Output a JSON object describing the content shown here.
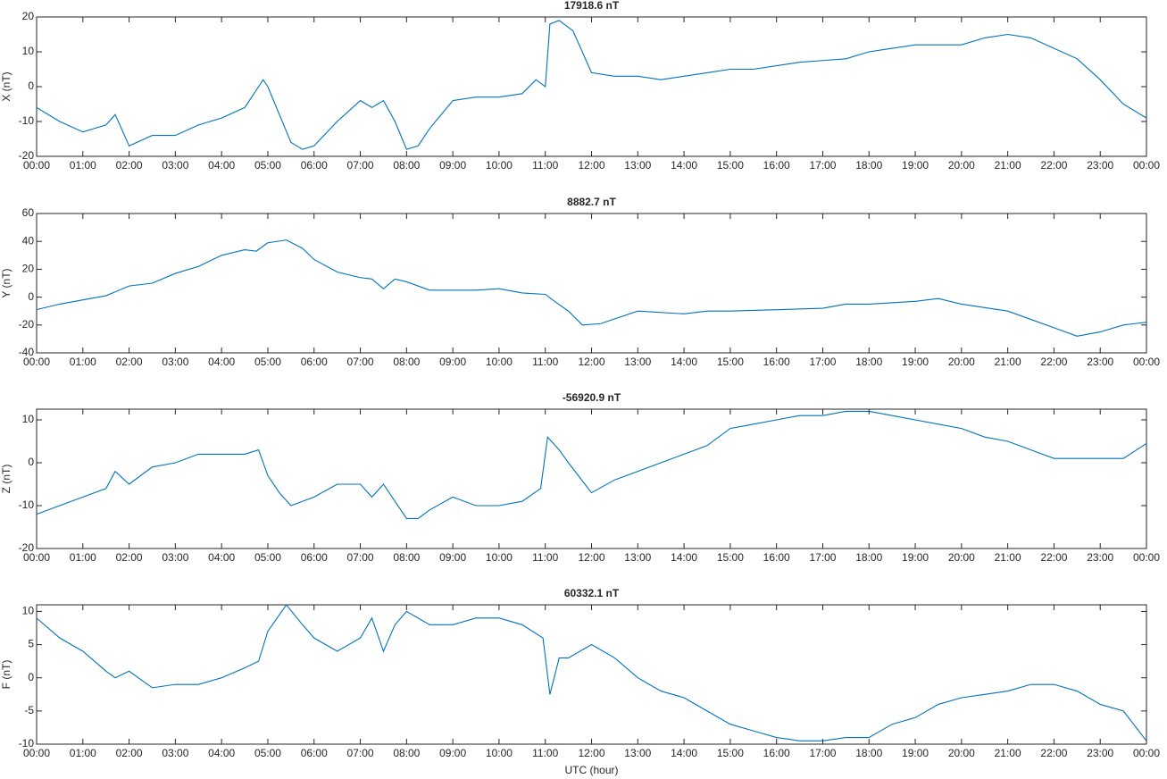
{
  "chart_data": [
    {
      "type": "line",
      "title": "17918.6 nT",
      "ylabel": "X (nT)",
      "color": "#0072bd",
      "x": [
        0,
        0.5,
        1,
        1.5,
        1.7,
        2,
        2.5,
        3,
        3.5,
        4,
        4.5,
        4.9,
        5,
        5.25,
        5.5,
        5.75,
        6,
        6.5,
        7,
        7.25,
        7.5,
        7.75,
        8,
        8.25,
        8.5,
        9,
        9.5,
        10,
        10.5,
        10.8,
        11,
        11.1,
        11.3,
        11.6,
        12,
        12.5,
        13,
        13.5,
        14,
        14.5,
        15,
        15.5,
        16,
        16.5,
        17,
        17.5,
        18,
        18.5,
        19,
        19.5,
        20,
        20.5,
        21,
        21.5,
        22,
        22.5,
        23,
        23.5,
        24
      ],
      "values": [
        -6,
        -10,
        -13,
        -11,
        -8,
        -17,
        -14,
        -14,
        -11,
        -9,
        -6,
        2,
        0,
        -8,
        -16,
        -18,
        -17,
        -10,
        -4,
        -6,
        -4,
        -10,
        -18,
        -17,
        -12,
        -4,
        -3,
        -3,
        -2,
        2,
        0,
        18,
        19,
        16,
        4,
        3,
        3,
        2,
        3,
        4,
        5,
        5,
        6,
        7,
        7.5,
        8,
        10,
        11,
        12,
        12,
        12,
        14,
        15,
        14,
        11,
        8,
        2,
        -5,
        -9
      ],
      "xlim": [
        0,
        24
      ],
      "ylim": [
        -20,
        20
      ],
      "yticks": [
        -20,
        -10,
        0,
        10,
        20
      ],
      "xticks": [
        {
          "value": 0,
          "label": "00:00"
        },
        {
          "value": 1,
          "label": "01:00"
        },
        {
          "value": 2,
          "label": "02:00"
        },
        {
          "value": 3,
          "label": "03:00"
        },
        {
          "value": 4,
          "label": "04:00"
        },
        {
          "value": 5,
          "label": "05:00"
        },
        {
          "value": 6,
          "label": "06:00"
        },
        {
          "value": 7,
          "label": "07:00"
        },
        {
          "value": 8,
          "label": "08:00"
        },
        {
          "value": 9,
          "label": "09:00"
        },
        {
          "value": 10,
          "label": "10:00"
        },
        {
          "value": 11,
          "label": "11:00"
        },
        {
          "value": 12,
          "label": "12:00"
        },
        {
          "value": 13,
          "label": "13:00"
        },
        {
          "value": 14,
          "label": "14:00"
        },
        {
          "value": 15,
          "label": "15:00"
        },
        {
          "value": 16,
          "label": "16:00"
        },
        {
          "value": 17,
          "label": "17:00"
        },
        {
          "value": 18,
          "label": "18:00"
        },
        {
          "value": 19,
          "label": "19:00"
        },
        {
          "value": 20,
          "label": "20:00"
        },
        {
          "value": 21,
          "label": "21:00"
        },
        {
          "value": 22,
          "label": "22:00"
        },
        {
          "value": 23,
          "label": "23:00"
        },
        {
          "value": 24,
          "label": "00:00"
        }
      ]
    },
    {
      "type": "line",
      "title": "8882.7 nT",
      "ylabel": "Y (nT)",
      "color": "#0072bd",
      "x": [
        0,
        0.5,
        1,
        1.5,
        2,
        2.5,
        3,
        3.5,
        4,
        4.5,
        4.75,
        5,
        5.4,
        5.75,
        6,
        6.5,
        7,
        7.25,
        7.5,
        7.75,
        8,
        8.5,
        9,
        9.5,
        10,
        10.5,
        11,
        11.2,
        11.5,
        11.8,
        12.2,
        13,
        14,
        14.5,
        15,
        16,
        17,
        17.5,
        18,
        19,
        19.5,
        20,
        21,
        21.5,
        22,
        22.5,
        23,
        23.5,
        24
      ],
      "values": [
        -9,
        -5,
        -2,
        1,
        8,
        10,
        17,
        22,
        30,
        34,
        33,
        39,
        41,
        35,
        27,
        18,
        14,
        13,
        6,
        13,
        11,
        5,
        5,
        5,
        6,
        3,
        2,
        -3,
        -10,
        -20,
        -19,
        -10,
        -12,
        -10,
        -10,
        -9,
        -8,
        -5,
        -5,
        -3,
        -1,
        -5,
        -10,
        -16,
        -22,
        -28,
        -25,
        -20,
        -18
      ],
      "xlim": [
        0,
        24
      ],
      "ylim": [
        -40,
        60
      ],
      "yticks": [
        -40,
        -20,
        0,
        20,
        40,
        60
      ],
      "xticks": [
        {
          "value": 0,
          "label": "00:00"
        },
        {
          "value": 1,
          "label": "01:00"
        },
        {
          "value": 2,
          "label": "02:00"
        },
        {
          "value": 3,
          "label": "03:00"
        },
        {
          "value": 4,
          "label": "04:00"
        },
        {
          "value": 5,
          "label": "05:00"
        },
        {
          "value": 6,
          "label": "06:00"
        },
        {
          "value": 7,
          "label": "07:00"
        },
        {
          "value": 8,
          "label": "08:00"
        },
        {
          "value": 9,
          "label": "09:00"
        },
        {
          "value": 10,
          "label": "10:00"
        },
        {
          "value": 11,
          "label": "11:00"
        },
        {
          "value": 12,
          "label": "12:00"
        },
        {
          "value": 13,
          "label": "13:00"
        },
        {
          "value": 14,
          "label": "14:00"
        },
        {
          "value": 15,
          "label": "15:00"
        },
        {
          "value": 16,
          "label": "16:00"
        },
        {
          "value": 17,
          "label": "17:00"
        },
        {
          "value": 18,
          "label": "18:00"
        },
        {
          "value": 19,
          "label": "19:00"
        },
        {
          "value": 20,
          "label": "20:00"
        },
        {
          "value": 21,
          "label": "21:00"
        },
        {
          "value": 22,
          "label": "22:00"
        },
        {
          "value": 23,
          "label": "23:00"
        },
        {
          "value": 24,
          "label": "00:00"
        }
      ]
    },
    {
      "type": "line",
      "title": "-56920.9 nT",
      "ylabel": "Z (nT)",
      "color": "#0072bd",
      "x": [
        0,
        0.5,
        1,
        1.5,
        1.7,
        2,
        2.5,
        3,
        3.5,
        4,
        4.5,
        4.8,
        5,
        5.25,
        5.5,
        6,
        6.5,
        7,
        7.25,
        7.5,
        7.75,
        8,
        8.25,
        8.5,
        9,
        9.5,
        10,
        10.5,
        10.9,
        11.05,
        11.3,
        11.5,
        12,
        12.5,
        13,
        13.5,
        14,
        14.5,
        15,
        15.5,
        16,
        16.5,
        17,
        17.5,
        18,
        18.5,
        19,
        19.5,
        20,
        20.5,
        21,
        21.5,
        22,
        22.5,
        23,
        23.5,
        24
      ],
      "values": [
        -12,
        -10,
        -8,
        -6,
        -2,
        -5,
        -1,
        0,
        2,
        2,
        2,
        3,
        -3,
        -7,
        -10,
        -8,
        -5,
        -5,
        -8,
        -5,
        -9,
        -13,
        -13,
        -11,
        -8,
        -10,
        -10,
        -9,
        -6,
        6,
        3,
        0,
        -7,
        -4,
        -2,
        0,
        2,
        4,
        8,
        9,
        10,
        11,
        11,
        12,
        12,
        11,
        10,
        9,
        8,
        6,
        5,
        3,
        1,
        1,
        1,
        1,
        4.5
      ],
      "xlim": [
        0,
        24
      ],
      "ylim": [
        -20,
        12.5
      ],
      "yticks": [
        -20,
        -10,
        0,
        10
      ],
      "xticks": [
        {
          "value": 0,
          "label": "00:00"
        },
        {
          "value": 1,
          "label": "01:00"
        },
        {
          "value": 2,
          "label": "02:00"
        },
        {
          "value": 3,
          "label": "03:00"
        },
        {
          "value": 4,
          "label": "04:00"
        },
        {
          "value": 5,
          "label": "05:00"
        },
        {
          "value": 6,
          "label": "06:00"
        },
        {
          "value": 7,
          "label": "07:00"
        },
        {
          "value": 8,
          "label": "08:00"
        },
        {
          "value": 9,
          "label": "09:00"
        },
        {
          "value": 10,
          "label": "10:00"
        },
        {
          "value": 11,
          "label": "11:00"
        },
        {
          "value": 12,
          "label": "12:00"
        },
        {
          "value": 13,
          "label": "13:00"
        },
        {
          "value": 14,
          "label": "14:00"
        },
        {
          "value": 15,
          "label": "15:00"
        },
        {
          "value": 16,
          "label": "16:00"
        },
        {
          "value": 17,
          "label": "17:00"
        },
        {
          "value": 18,
          "label": "18:00"
        },
        {
          "value": 19,
          "label": "19:00"
        },
        {
          "value": 20,
          "label": "20:00"
        },
        {
          "value": 21,
          "label": "21:00"
        },
        {
          "value": 22,
          "label": "22:00"
        },
        {
          "value": 23,
          "label": "23:00"
        },
        {
          "value": 24,
          "label": "00:00"
        }
      ]
    },
    {
      "type": "line",
      "title": "60332.1 nT",
      "ylabel": "F (nT)",
      "xlabel": "UTC (hour)",
      "color": "#0072bd",
      "x": [
        0,
        0.5,
        1,
        1.5,
        1.7,
        2,
        2.5,
        3,
        3.5,
        4,
        4.5,
        4.8,
        5,
        5.4,
        5.75,
        6,
        6.5,
        7,
        7.25,
        7.5,
        7.75,
        8,
        8.5,
        9,
        9.5,
        10,
        10.5,
        10.95,
        11.1,
        11.3,
        11.5,
        12,
        12.5,
        13,
        13.5,
        14,
        14.5,
        15,
        15.5,
        16,
        16.5,
        17,
        17.5,
        18,
        18.5,
        19,
        19.5,
        20,
        20.5,
        21,
        21.5,
        22,
        22.5,
        23,
        23.5,
        24
      ],
      "values": [
        9,
        6,
        4,
        1,
        0,
        1,
        -1.5,
        -1,
        -1,
        0,
        1.5,
        2.5,
        7,
        11,
        8,
        6,
        4,
        6,
        9,
        4,
        8,
        10,
        8,
        8,
        9,
        9,
        8,
        6,
        -2.5,
        3,
        3,
        5,
        3,
        0,
        -2,
        -3,
        -5,
        -7,
        -8,
        -9,
        -9.5,
        -9.5,
        -9,
        -9,
        -7,
        -6,
        -4,
        -3,
        -2.5,
        -2,
        -1,
        -1,
        -2,
        -4,
        -5,
        -9.5
      ],
      "xlim": [
        0,
        24
      ],
      "ylim": [
        -10,
        11
      ],
      "yticks": [
        -10,
        -5,
        0,
        5,
        10
      ],
      "xticks": [
        {
          "value": 0,
          "label": "00:00"
        },
        {
          "value": 1,
          "label": "01:00"
        },
        {
          "value": 2,
          "label": "02:00"
        },
        {
          "value": 3,
          "label": "03:00"
        },
        {
          "value": 4,
          "label": "04:00"
        },
        {
          "value": 5,
          "label": "05:00"
        },
        {
          "value": 6,
          "label": "06:00"
        },
        {
          "value": 7,
          "label": "07:00"
        },
        {
          "value": 8,
          "label": "08:00"
        },
        {
          "value": 9,
          "label": "09:00"
        },
        {
          "value": 10,
          "label": "10:00"
        },
        {
          "value": 11,
          "label": "11:00"
        },
        {
          "value": 12,
          "label": "12:00"
        },
        {
          "value": 13,
          "label": "13:00"
        },
        {
          "value": 14,
          "label": "14:00"
        },
        {
          "value": 15,
          "label": "15:00"
        },
        {
          "value": 16,
          "label": "16:00"
        },
        {
          "value": 17,
          "label": "17:00"
        },
        {
          "value": 18,
          "label": "18:00"
        },
        {
          "value": 19,
          "label": "19:00"
        },
        {
          "value": 20,
          "label": "20:00"
        },
        {
          "value": 21,
          "label": "21:00"
        },
        {
          "value": 22,
          "label": "22:00"
        },
        {
          "value": 23,
          "label": "23:00"
        },
        {
          "value": 24,
          "label": "00:00"
        }
      ]
    }
  ]
}
